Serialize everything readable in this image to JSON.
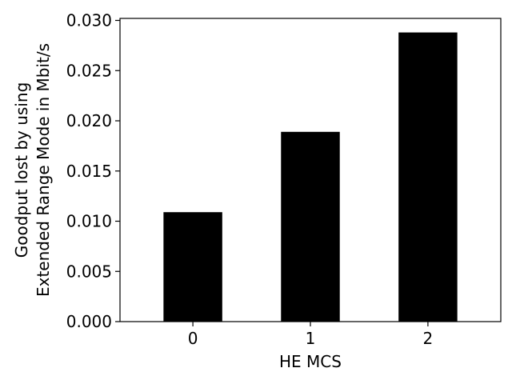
{
  "chart_data": {
    "type": "bar",
    "title": "",
    "xlabel": "HE MCS",
    "ylabel_lines": [
      "Goodput lost by using",
      "Extended Range Mode in Mbit/s"
    ],
    "categories": [
      "0",
      "1",
      "2"
    ],
    "values": [
      0.0109,
      0.0189,
      0.0288
    ],
    "ylim": [
      0,
      0.0302
    ],
    "yticks": [
      0.0,
      0.005,
      0.01,
      0.015,
      0.02,
      0.025,
      0.03
    ],
    "ytick_labels": [
      "0.000",
      "0.005",
      "0.010",
      "0.015",
      "0.020",
      "0.025",
      "0.030"
    ],
    "bar_color": "#000000",
    "grid": false,
    "legend": "none"
  }
}
